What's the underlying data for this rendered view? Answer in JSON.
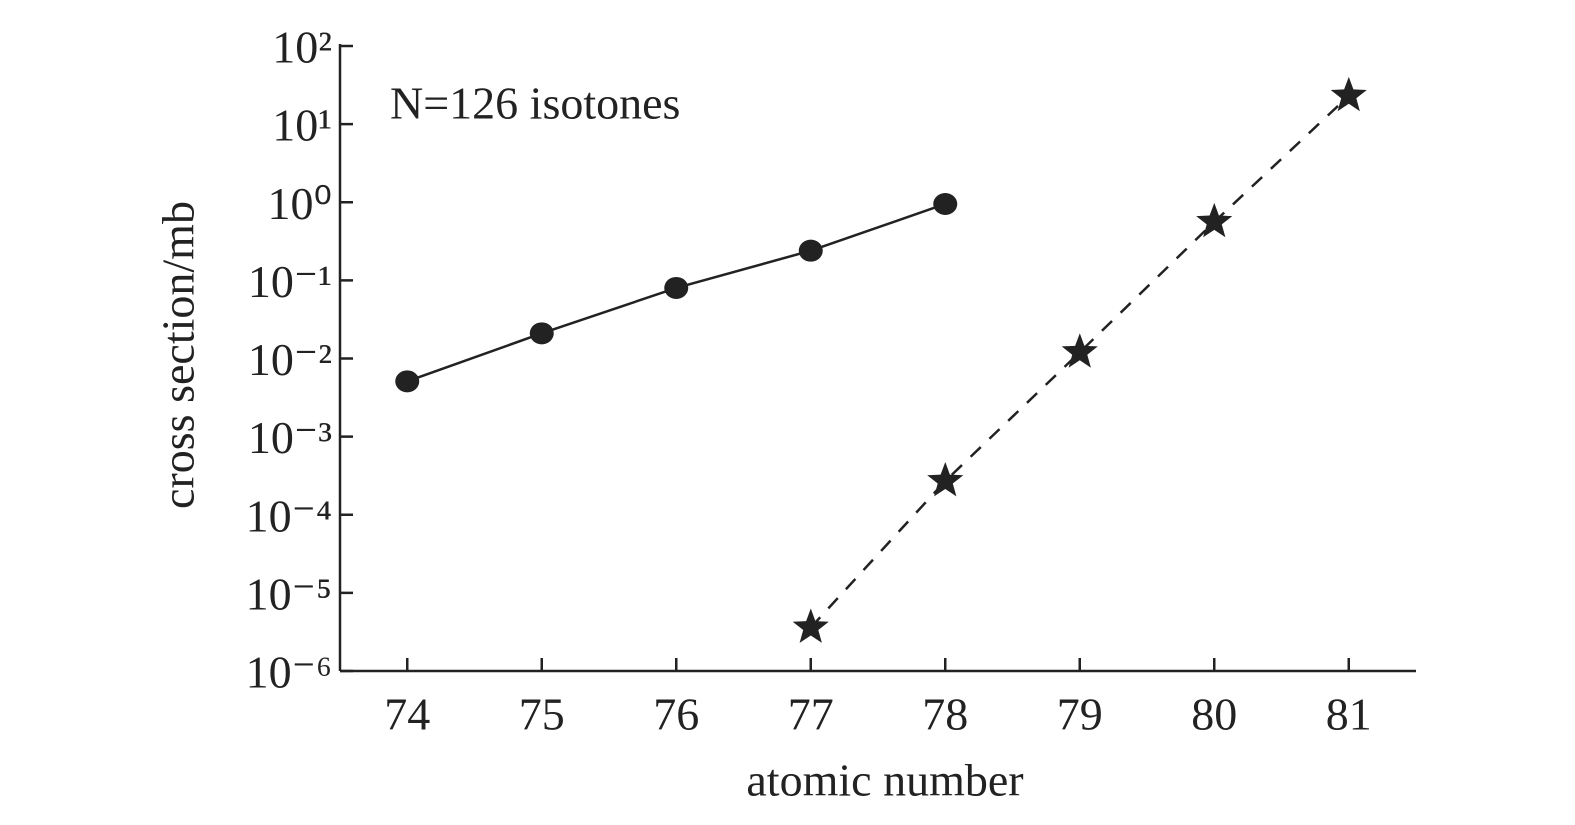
{
  "chart_data": {
    "type": "line",
    "annotation": "N=126 isotones",
    "x_label": "atomic number",
    "y_label": "cross section/mb",
    "y_scale": "log",
    "xlim": [
      73.5,
      81.5
    ],
    "xticks": [
      74,
      75,
      76,
      77,
      78,
      79,
      80,
      81
    ],
    "ylim": [
      1e-06,
      100
    ],
    "yticks": [
      {
        "value": 1e-06,
        "label": "10⁻⁶"
      },
      {
        "value": 1e-05,
        "label": "10⁻⁵"
      },
      {
        "value": 0.0001,
        "label": "10⁻⁴"
      },
      {
        "value": 0.001,
        "label": "10⁻³"
      },
      {
        "value": 0.01,
        "label": "10⁻²"
      },
      {
        "value": 0.1,
        "label": "10⁻¹"
      },
      {
        "value": 1,
        "label": "10⁰"
      },
      {
        "value": 10,
        "label": "10¹"
      },
      {
        "value": 100,
        "label": "10²"
      }
    ],
    "series": [
      {
        "marker": "circle",
        "line_style": "solid",
        "color": "#222222",
        "x": [
          74,
          75,
          76,
          77,
          78
        ],
        "values": [
          0.0051,
          0.021,
          0.08,
          0.24,
          0.95
        ]
      },
      {
        "marker": "star",
        "line_style": "dashed",
        "color": "#222222",
        "x": [
          77,
          78,
          79,
          80,
          81
        ],
        "values": [
          3.6e-06,
          0.00027,
          0.012,
          0.56,
          23
        ]
      }
    ]
  }
}
